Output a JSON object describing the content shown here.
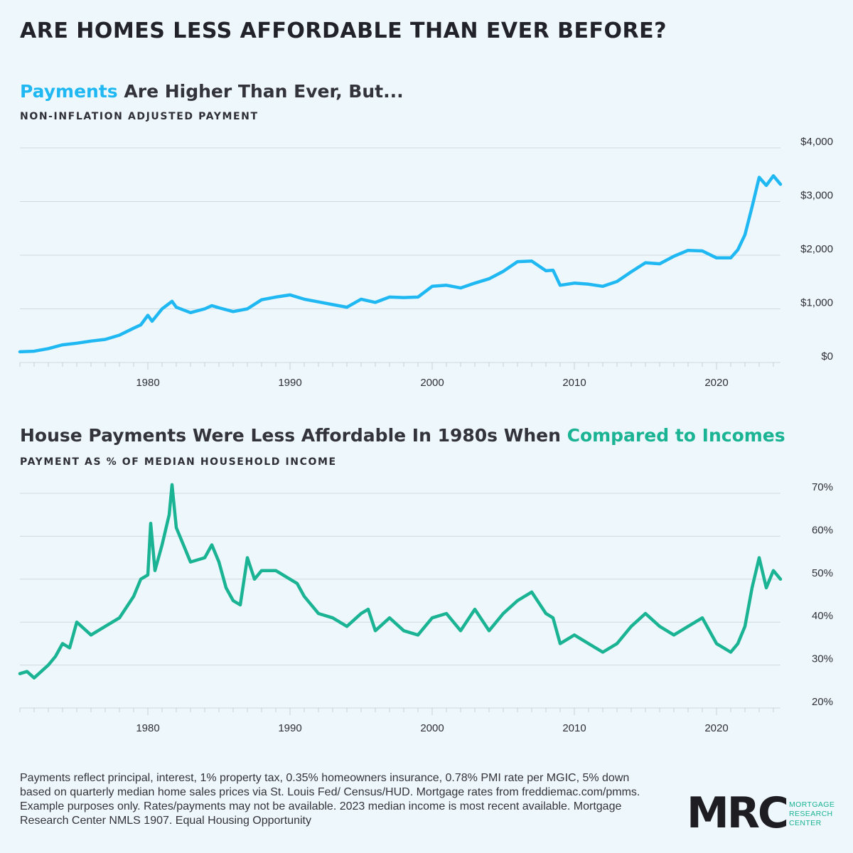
{
  "header": {
    "title": "ARE HOMES LESS AFFORDABLE THAN EVER BEFORE?"
  },
  "chart1": {
    "title_highlight": "Payments",
    "title_rest": " Are Higher Than Ever, But...",
    "subtitle": "NON-INFLATION ADJUSTED PAYMENT",
    "accent_color": "#1fb8f2"
  },
  "chart2": {
    "title_main": "House Payments Were Less Affordable In 1980s When ",
    "title_highlight": "Compared to Incomes",
    "subtitle": "PAYMENT AS % OF MEDIAN HOUSEHOLD INCOME",
    "accent_color": "#1ab393"
  },
  "chart_data": [
    {
      "type": "line",
      "title": "Payments Are Higher Than Ever, But...",
      "subtitle": "NON-INFLATION ADJUSTED PAYMENT",
      "xlim": [
        1971,
        2024.5
      ],
      "ylim": [
        0,
        4000
      ],
      "x_ticks": [
        1980,
        1990,
        2000,
        2010,
        2020
      ],
      "x_tick_labels": [
        "1980",
        "1990",
        "2000",
        "2010",
        "2020"
      ],
      "y_ticks": [
        0,
        1000,
        2000,
        3000,
        4000
      ],
      "y_tick_labels": [
        "$0",
        "$1,000",
        "$2,000",
        "$3,000",
        "$4,000"
      ],
      "grid": "horizontal",
      "color": "#1fb8f2",
      "series": [
        {
          "x": [
            1971,
            1972,
            1973,
            1974,
            1975,
            1976,
            1977,
            1978,
            1979,
            1979.5,
            1980,
            1980.3,
            1981,
            1981.7,
            1982,
            1983,
            1984,
            1984.5,
            1985,
            1986,
            1987,
            1988,
            1989,
            1990,
            1991,
            1992,
            1993,
            1994,
            1995,
            1996,
            1997,
            1998,
            1999,
            2000,
            2001,
            2002,
            2003,
            2004,
            2005,
            2006,
            2007,
            2008,
            2008.5,
            2009,
            2010,
            2011,
            2012,
            2013,
            2014,
            2015,
            2016,
            2017,
            2018,
            2019,
            2020,
            2021,
            2021.5,
            2022,
            2022.5,
            2023,
            2023.5,
            2024,
            2024.5
          ],
          "y": [
            200,
            210,
            260,
            330,
            360,
            400,
            430,
            510,
            640,
            700,
            880,
            770,
            1000,
            1140,
            1030,
            930,
            1000,
            1060,
            1020,
            950,
            1000,
            1170,
            1220,
            1260,
            1180,
            1130,
            1080,
            1030,
            1180,
            1120,
            1220,
            1210,
            1220,
            1420,
            1440,
            1390,
            1480,
            1560,
            1700,
            1880,
            1890,
            1710,
            1720,
            1440,
            1480,
            1460,
            1420,
            1510,
            1690,
            1860,
            1840,
            1980,
            2090,
            2080,
            1950,
            1950,
            2100,
            2380,
            2900,
            3450,
            3300,
            3480,
            3320
          ]
        }
      ]
    },
    {
      "type": "line",
      "title": "House Payments Were Less Affordable In 1980s When Compared to Incomes",
      "subtitle": "PAYMENT AS % OF MEDIAN HOUSEHOLD INCOME",
      "xlim": [
        1971,
        2024.5
      ],
      "ylim": [
        20,
        70
      ],
      "x_ticks": [
        1980,
        1990,
        2000,
        2010,
        2020
      ],
      "x_tick_labels": [
        "1980",
        "1990",
        "2000",
        "2010",
        "2020"
      ],
      "y_ticks": [
        20,
        30,
        40,
        50,
        60,
        70
      ],
      "y_tick_labels": [
        "20%",
        "30%",
        "40%",
        "50%",
        "60%",
        "70%"
      ],
      "grid": "horizontal",
      "color": "#1ab393",
      "series": [
        {
          "x": [
            1971,
            1971.5,
            1972,
            1973,
            1973.5,
            1974,
            1974.5,
            1975,
            1976,
            1977,
            1978,
            1979,
            1979.5,
            1980,
            1980.2,
            1980.5,
            1981,
            1981.5,
            1981.7,
            1982,
            1983,
            1984,
            1984.5,
            1985,
            1985.5,
            1986,
            1986.5,
            1987,
            1987.5,
            1988,
            1989,
            1990,
            1990.5,
            1991,
            1992,
            1993,
            1994,
            1995,
            1995.5,
            1996,
            1997,
            1998,
            1999,
            2000,
            2001,
            2002,
            2003,
            2004,
            2005,
            2006,
            2007,
            2008,
            2008.5,
            2009,
            2010,
            2011,
            2012,
            2013,
            2014,
            2015,
            2016,
            2017,
            2018,
            2019,
            2020,
            2021,
            2021.5,
            2022,
            2022.5,
            2023,
            2023.5,
            2024,
            2024.5
          ],
          "y": [
            28,
            28.5,
            27,
            30,
            32,
            35,
            34,
            40,
            37,
            39,
            41,
            46,
            50,
            51,
            63,
            52,
            58,
            65,
            72,
            62,
            54,
            55,
            58,
            54,
            48,
            45,
            44,
            55,
            50,
            52,
            52,
            50,
            49,
            46,
            42,
            41,
            39,
            42,
            43,
            38,
            41,
            38,
            37,
            41,
            42,
            38,
            43,
            38,
            42,
            45,
            47,
            42,
            41,
            35,
            37,
            35,
            33,
            35,
            39,
            42,
            39,
            37,
            39,
            41,
            35,
            33,
            35,
            39,
            48,
            55,
            48,
            52,
            50
          ]
        }
      ]
    }
  ],
  "footer": {
    "text": "Payments reflect principal, interest, 1% property tax, 0.35% homeowners insurance, 0.78% PMI rate per MGIC, 5% down based on quarterly median home sales prices via St. Louis Fed/ Census/HUD. Mortgage rates from freddiemac.com/pmms. Example purposes only. Rates/payments may not be available. 2023 median income is most recent available. Mortgage Research Center NMLS 1907. Equal Housing Opportunity"
  },
  "logo": {
    "mark": "MRC",
    "line1": "MORTGAGE",
    "line2": "RESEARCH",
    "line3": "CENTER"
  }
}
